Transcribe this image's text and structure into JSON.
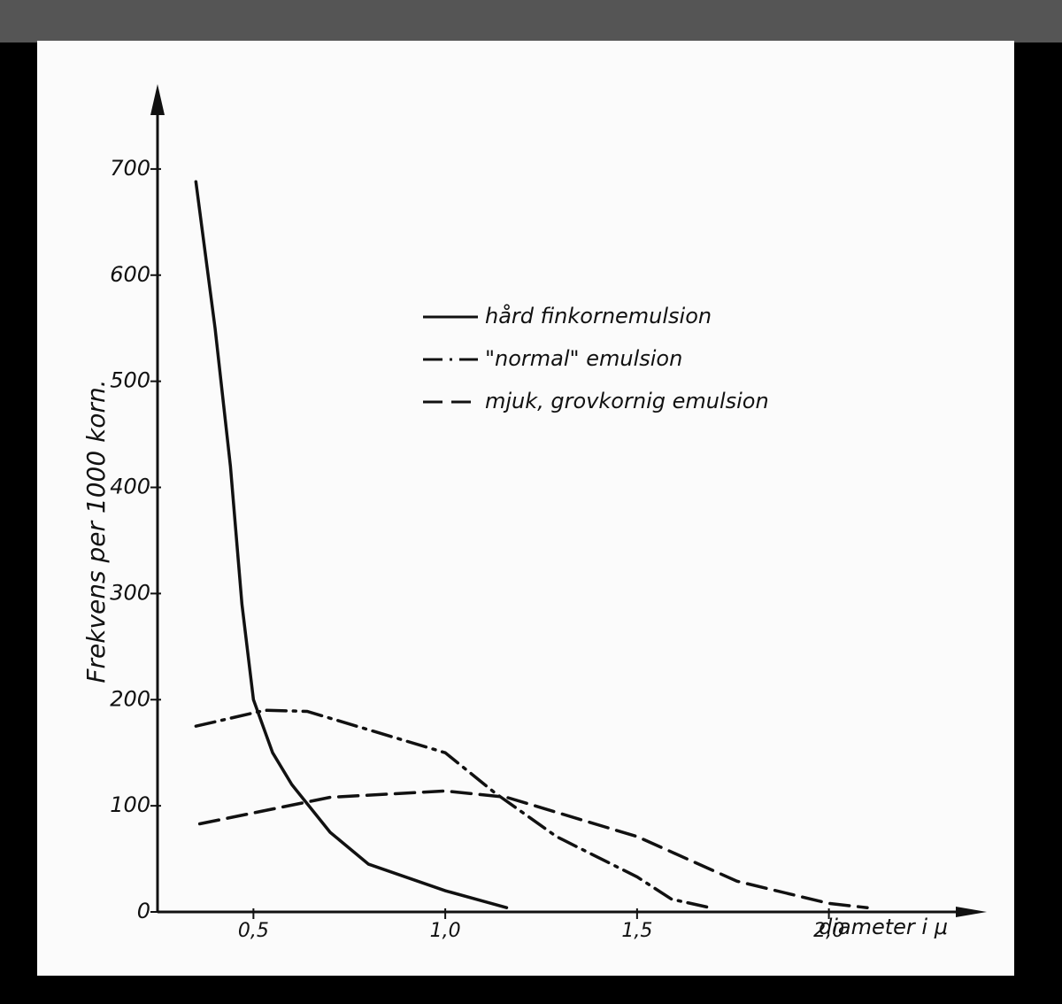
{
  "chart_data": {
    "type": "line",
    "y_label": "Frekvens per 1000 korn.",
    "x_label": "diameter i μ",
    "xlim": [
      0.25,
      2.4
    ],
    "ylim": [
      0,
      780
    ],
    "xticks": [
      {
        "value": 0.5,
        "label": "0,5"
      },
      {
        "value": 1.0,
        "label": "1,0"
      },
      {
        "value": 1.5,
        "label": "1,5"
      },
      {
        "value": 2.0,
        "label": "2,0"
      }
    ],
    "yticks": [
      0,
      100,
      200,
      300,
      400,
      500,
      600,
      700
    ],
    "series": [
      {
        "name": "hård finkornemulsion",
        "color": "#111111",
        "style": "solid",
        "x": [
          0.35,
          0.4,
          0.44,
          0.47,
          0.5,
          0.55,
          0.6,
          0.7,
          0.8,
          1.0,
          1.16
        ],
        "values": [
          688,
          550,
          420,
          290,
          200,
          150,
          120,
          75,
          45,
          20,
          4
        ]
      },
      {
        "name": "\"normal\" emulsion",
        "color": "#111111",
        "style": "dashdot",
        "x": [
          0.35,
          0.53,
          0.64,
          1.0,
          1.13,
          1.29,
          1.5,
          1.59,
          1.69
        ],
        "values": [
          175,
          190,
          189,
          150,
          112,
          71,
          33,
          12,
          4
        ]
      },
      {
        "name": "mjuk, grovkornig emulsion",
        "color": "#111111",
        "style": "dashed",
        "x": [
          0.36,
          0.7,
          1.0,
          1.16,
          1.5,
          1.76,
          2.0,
          2.1
        ],
        "values": [
          83,
          108,
          114,
          108,
          71,
          29,
          8,
          4
        ]
      }
    ]
  }
}
